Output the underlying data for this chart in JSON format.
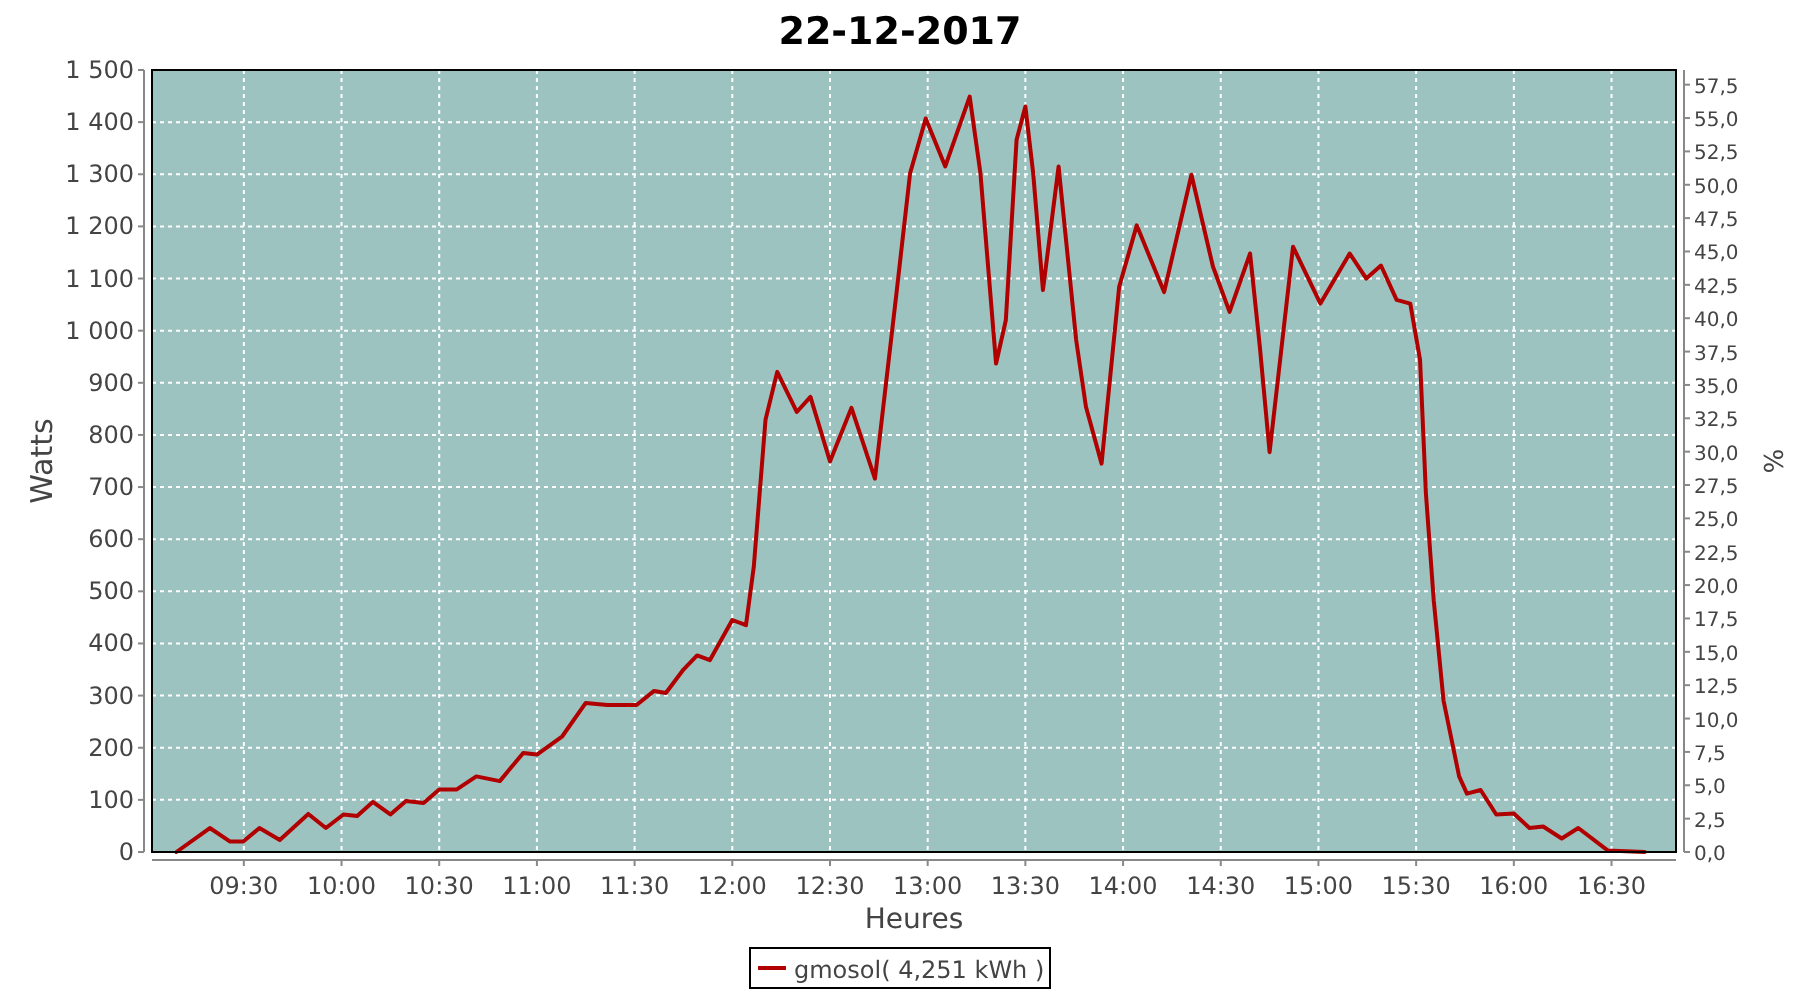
{
  "chart_data": {
    "type": "line",
    "title": "22-12-2017",
    "xlabel": "Heures",
    "ylabel": "Watts",
    "y2label": "%",
    "x": [
      9.155,
      9.326,
      9.43,
      9.497,
      9.58,
      9.684,
      9.83,
      9.92,
      10.01,
      10.08,
      10.16,
      10.25,
      10.33,
      10.42,
      10.5,
      10.59,
      10.69,
      10.81,
      10.93,
      11.0,
      11.13,
      11.25,
      11.36,
      11.51,
      11.6,
      11.66,
      11.75,
      11.82,
      11.885,
      12.0,
      12.07,
      12.11,
      12.17,
      12.23,
      12.33,
      12.4,
      12.5,
      12.61,
      12.73,
      12.84,
      12.91,
      12.99,
      13.09,
      13.215,
      13.27,
      13.35,
      13.4,
      13.455,
      13.5,
      13.54,
      13.59,
      13.67,
      13.76,
      13.81,
      13.89,
      13.98,
      14.07,
      14.21,
      14.35,
      14.46,
      14.545,
      14.65,
      14.7,
      14.75,
      14.87,
      15.01,
      15.16,
      15.245,
      15.32,
      15.4,
      15.47,
      15.52,
      15.55,
      15.59,
      15.64,
      15.72,
      15.76,
      15.83,
      15.91,
      16.0,
      16.08,
      16.15,
      16.245,
      16.33,
      16.48,
      16.67
    ],
    "series": [
      {
        "name": "gmosol( 4,251 kWh )",
        "color": "#b00000",
        "values": [
          0,
          46,
          20,
          20,
          46,
          23,
          73,
          46,
          72,
          69,
          96,
          72,
          98,
          94,
          120,
          120,
          145,
          136,
          190,
          187,
          222,
          286,
          282,
          282,
          309,
          305,
          350,
          377,
          368,
          445,
          435,
          547,
          829,
          921,
          844,
          873,
          749,
          852,
          716,
          1071,
          1302,
          1407,
          1315,
          1449,
          1302,
          937,
          1020,
          1366,
          1430,
          1302,
          1078,
          1315,
          982,
          854,
          745,
          1084,
          1202,
          1074,
          1299,
          1123,
          1036,
          1148,
          969,
          767,
          1161,
          1052,
          1148,
          1100,
          1125,
          1059,
          1052,
          944,
          688,
          483,
          291,
          145,
          112,
          119,
          72,
          74,
          46,
          49,
          26,
          46,
          3,
          0
        ]
      }
    ],
    "xlim": [
      9.03,
      16.83
    ],
    "xticks": [
      {
        "value": 9.5,
        "label": "09:30"
      },
      {
        "value": 10,
        "label": "10:00"
      },
      {
        "value": 10.5,
        "label": "10:30"
      },
      {
        "value": 11,
        "label": "11:00"
      },
      {
        "value": 11.5,
        "label": "11:30"
      },
      {
        "value": 12,
        "label": "12:00"
      },
      {
        "value": 12.5,
        "label": "12:30"
      },
      {
        "value": 13,
        "label": "13:00"
      },
      {
        "value": 13.5,
        "label": "13:30"
      },
      {
        "value": 14,
        "label": "14:00"
      },
      {
        "value": 14.5,
        "label": "14:30"
      },
      {
        "value": 15,
        "label": "15:00"
      },
      {
        "value": 15.5,
        "label": "15:30"
      },
      {
        "value": 16,
        "label": "16:00"
      },
      {
        "value": 16.5,
        "label": "16:30"
      }
    ],
    "ylim": [
      0,
      1500
    ],
    "yticks": [
      0,
      100,
      200,
      300,
      400,
      500,
      600,
      700,
      800,
      900,
      {
        "value": 1000,
        "label": "1 000"
      },
      {
        "value": 1100,
        "label": "1 100"
      },
      {
        "value": 1200,
        "label": "1 200"
      },
      {
        "value": 1300,
        "label": "1 300"
      },
      {
        "value": 1400,
        "label": "1 400"
      },
      {
        "value": 1500,
        "label": "1 500"
      }
    ],
    "y2lim": [
      0,
      58.6
    ],
    "y2ticks": [
      {
        "value": 0,
        "label": "0,0"
      },
      {
        "value": 2.5,
        "label": "2,5"
      },
      {
        "value": 5,
        "label": "5,0"
      },
      {
        "value": 7.5,
        "label": "7,5"
      },
      {
        "value": 10,
        "label": "10,0"
      },
      {
        "value": 12.5,
        "label": "12,5"
      },
      {
        "value": 15,
        "label": "15,0"
      },
      {
        "value": 17.5,
        "label": "17,5"
      },
      {
        "value": 20,
        "label": "20,0"
      },
      {
        "value": 22.5,
        "label": "22,5"
      },
      {
        "value": 25,
        "label": "25,0"
      },
      {
        "value": 27.5,
        "label": "27,5"
      },
      {
        "value": 30,
        "label": "30,0"
      },
      {
        "value": 32.5,
        "label": "32,5"
      },
      {
        "value": 35,
        "label": "35,0"
      },
      {
        "value": 37.5,
        "label": "37,5"
      },
      {
        "value": 40,
        "label": "40,0"
      },
      {
        "value": 42.5,
        "label": "42,5"
      },
      {
        "value": 45,
        "label": "45,0"
      },
      {
        "value": 47.5,
        "label": "47,5"
      },
      {
        "value": 50,
        "label": "50,0"
      },
      {
        "value": 52.5,
        "label": "52,5"
      },
      {
        "value": 55,
        "label": "55,0"
      },
      {
        "value": 57.5,
        "label": "57,5"
      }
    ],
    "grid": true,
    "legend": "bottom",
    "marker": "none",
    "line_style": "solid"
  }
}
